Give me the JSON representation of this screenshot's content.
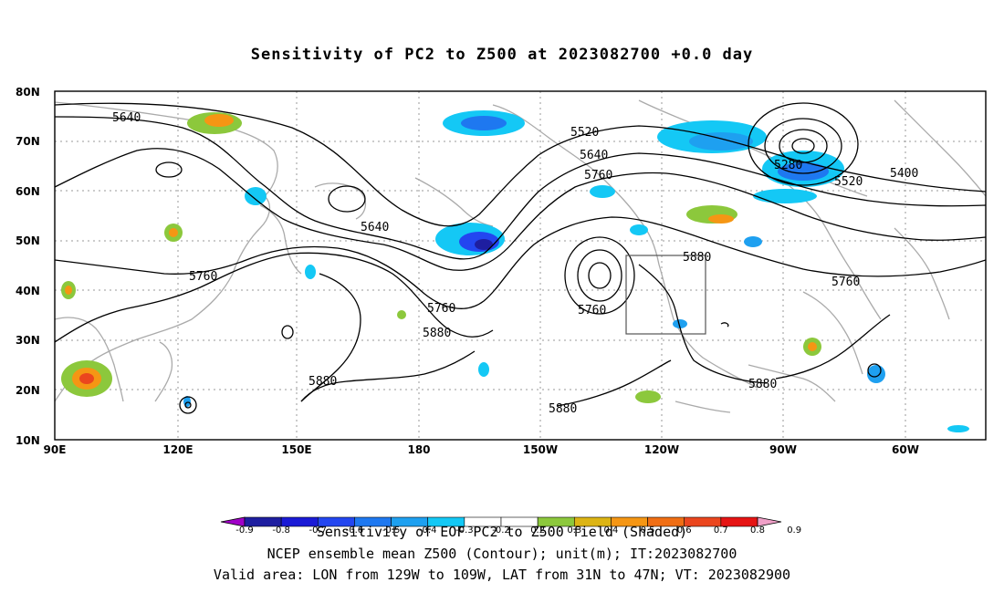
{
  "title": "Sensitivity of PC2 to Z500 at 2023082700 +0.0 day",
  "axes": {
    "lat_labels": [
      "80N",
      "70N",
      "60N",
      "50N",
      "40N",
      "30N",
      "20N",
      "10N"
    ],
    "lon_labels": [
      "90E",
      "120E",
      "150E",
      "180",
      "150W",
      "120W",
      "90W",
      "60W"
    ]
  },
  "contour_labels": [
    "5640",
    "5520",
    "5640",
    "5760",
    "5280",
    "5400",
    "5520",
    "5640",
    "5760",
    "5880",
    "5760",
    "5760",
    "5880",
    "5880",
    "5760",
    "5880",
    "5880"
  ],
  "colorbar": {
    "ticks": [
      "-0.9",
      "-0.8",
      "-0.7",
      "-0.6",
      "-0.5",
      "-0.4",
      "-0.3",
      "-0.2",
      "0.2",
      "0.3",
      "0.4",
      "0.5",
      "0.6",
      "0.7",
      "0.8",
      "0.9"
    ],
    "colors": [
      "#a000c8",
      "#1e1ea0",
      "#1a1ad6",
      "#2346f0",
      "#1e78f0",
      "#1ea0f0",
      "#14c8f5",
      "#ffffff",
      "#ffffff",
      "#8cc83c",
      "#dcb414",
      "#f59614",
      "#f06e14",
      "#eb461e",
      "#e61414",
      "#f0a0c8"
    ],
    "overlay_label": "Sensitivity of EOF PC2 to Z500 field (Shaded)"
  },
  "captions": {
    "line1": "NCEP ensemble mean Z500 (Contour); unit(m); IT:2023082700",
    "line2": "Valid area: LON from 129W to 109W, LAT from 31N to 47N; VT: 2023082900"
  },
  "valid_area": {
    "lon": [
      "129W",
      "109W"
    ],
    "lat": [
      "31N",
      "47N"
    ]
  }
}
